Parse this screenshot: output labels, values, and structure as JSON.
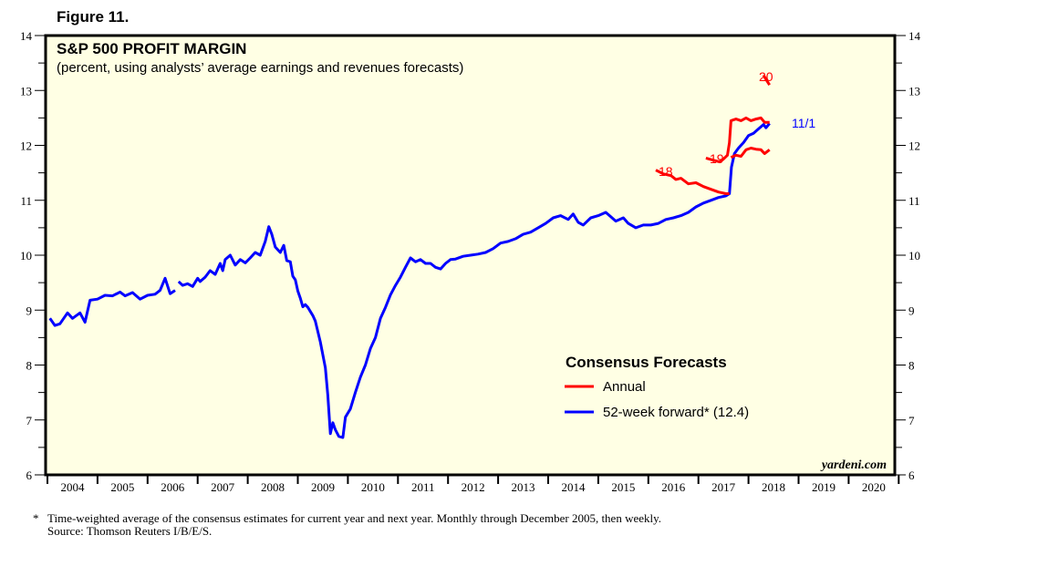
{
  "figure_label": "Figure 11.",
  "footnote": {
    "marker": "*",
    "line1": "Time-weighted average of the consensus estimates for current year and next year. Monthly through December 2005, then weekly.",
    "line2": "Source: Thomson Reuters I/B/E/S."
  },
  "chart_data": {
    "type": "line",
    "title": "S&P 500 PROFIT MARGIN",
    "subtitle": "(percent, using analysts’ average earnings and revenues forecasts)",
    "xlabel": "",
    "ylabel": "",
    "xlim": [
      2004,
      2021
    ],
    "ylim": [
      6,
      14
    ],
    "y_ticks": [
      6,
      7,
      8,
      9,
      10,
      11,
      12,
      13,
      14
    ],
    "x_tick_labels": [
      "2004",
      "2005",
      "2006",
      "2007",
      "2008",
      "2009",
      "2010",
      "2011",
      "2012",
      "2013",
      "2014",
      "2015",
      "2016",
      "2017",
      "2018",
      "2019",
      "2020"
    ],
    "grid": false,
    "brand": "yardeni.com",
    "colors": {
      "annual": "#ff0000",
      "forward": "#0000ff",
      "background": "#ffffe4"
    },
    "legend": {
      "title": "Consensus Forecasts",
      "placement": "lower-right",
      "entries": [
        {
          "name": "Annual",
          "color": "#ff0000"
        },
        {
          "name": "52-week forward* (12.4)",
          "color": "#0000ff"
        }
      ]
    },
    "annotations": [
      {
        "text": "18",
        "series": "Annual 2018",
        "color": "#ff0000"
      },
      {
        "text": "19",
        "series": "Annual 2019",
        "color": "#ff0000"
      },
      {
        "text": "20",
        "series": "Annual 2020",
        "color": "#ff0000"
      },
      {
        "text": "11/1",
        "series": "52-week forward latest",
        "color": "#0000ff"
      }
    ],
    "series": [
      {
        "name": "52-week forward",
        "color": "#0000ff",
        "segments": [
          [
            [
              2004.05,
              8.85
            ],
            [
              2004.15,
              8.72
            ],
            [
              2004.25,
              8.75
            ],
            [
              2004.4,
              8.95
            ],
            [
              2004.5,
              8.85
            ],
            [
              2004.65,
              8.95
            ],
            [
              2004.75,
              8.78
            ],
            [
              2004.85,
              9.18
            ],
            [
              2005.0,
              9.2
            ],
            [
              2005.15,
              9.27
            ],
            [
              2005.3,
              9.26
            ],
            [
              2005.45,
              9.33
            ],
            [
              2005.55,
              9.26
            ],
            [
              2005.7,
              9.32
            ],
            [
              2005.85,
              9.2
            ],
            [
              2006.0,
              9.27
            ],
            [
              2006.15,
              9.29
            ],
            [
              2006.25,
              9.36
            ],
            [
              2006.35,
              9.58
            ],
            [
              2006.45,
              9.3
            ],
            [
              2006.55,
              9.36
            ]
          ],
          [
            [
              2006.62,
              9.52
            ],
            [
              2006.7,
              9.45
            ],
            [
              2006.8,
              9.48
            ],
            [
              2006.9,
              9.43
            ],
            [
              2007.0,
              9.58
            ],
            [
              2007.05,
              9.52
            ],
            [
              2007.15,
              9.6
            ],
            [
              2007.25,
              9.72
            ],
            [
              2007.35,
              9.65
            ],
            [
              2007.45,
              9.85
            ],
            [
              2007.5,
              9.72
            ],
            [
              2007.55,
              9.92
            ],
            [
              2007.65,
              10.0
            ],
            [
              2007.75,
              9.82
            ],
            [
              2007.85,
              9.92
            ],
            [
              2007.95,
              9.86
            ],
            [
              2008.05,
              9.95
            ],
            [
              2008.15,
              10.05
            ],
            [
              2008.25,
              10.0
            ],
            [
              2008.35,
              10.25
            ],
            [
              2008.42,
              10.52
            ],
            [
              2008.48,
              10.38
            ],
            [
              2008.55,
              10.15
            ],
            [
              2008.65,
              10.05
            ],
            [
              2008.72,
              10.18
            ],
            [
              2008.78,
              9.9
            ],
            [
              2008.85,
              9.88
            ],
            [
              2008.9,
              9.62
            ],
            [
              2008.95,
              9.55
            ],
            [
              2009.0,
              9.35
            ],
            [
              2009.05,
              9.22
            ],
            [
              2009.1,
              9.06
            ],
            [
              2009.15,
              9.1
            ],
            [
              2009.2,
              9.05
            ],
            [
              2009.3,
              8.9
            ],
            [
              2009.35,
              8.8
            ],
            [
              2009.45,
              8.42
            ],
            [
              2009.55,
              7.95
            ],
            [
              2009.6,
              7.45
            ],
            [
              2009.65,
              6.75
            ],
            [
              2009.7,
              6.95
            ],
            [
              2009.75,
              6.82
            ],
            [
              2009.82,
              6.7
            ],
            [
              2009.9,
              6.68
            ],
            [
              2009.95,
              7.05
            ],
            [
              2010.05,
              7.2
            ],
            [
              2010.15,
              7.5
            ],
            [
              2010.25,
              7.78
            ],
            [
              2010.35,
              8.0
            ],
            [
              2010.45,
              8.3
            ],
            [
              2010.55,
              8.5
            ],
            [
              2010.65,
              8.85
            ],
            [
              2010.75,
              9.05
            ],
            [
              2010.85,
              9.28
            ],
            [
              2010.95,
              9.45
            ],
            [
              2011.05,
              9.6
            ],
            [
              2011.15,
              9.78
            ],
            [
              2011.25,
              9.95
            ],
            [
              2011.35,
              9.88
            ],
            [
              2011.45,
              9.92
            ],
            [
              2011.55,
              9.85
            ],
            [
              2011.65,
              9.85
            ],
            [
              2011.75,
              9.78
            ],
            [
              2011.85,
              9.75
            ],
            [
              2011.95,
              9.85
            ],
            [
              2012.05,
              9.92
            ],
            [
              2012.15,
              9.93
            ],
            [
              2012.3,
              9.98
            ],
            [
              2012.45,
              10.0
            ],
            [
              2012.6,
              10.02
            ],
            [
              2012.75,
              10.05
            ],
            [
              2012.9,
              10.12
            ],
            [
              2013.05,
              10.22
            ],
            [
              2013.2,
              10.25
            ],
            [
              2013.35,
              10.3
            ],
            [
              2013.5,
              10.38
            ],
            [
              2013.65,
              10.42
            ],
            [
              2013.8,
              10.5
            ],
            [
              2013.95,
              10.58
            ],
            [
              2014.1,
              10.68
            ],
            [
              2014.25,
              10.72
            ],
            [
              2014.4,
              10.65
            ],
            [
              2014.5,
              10.75
            ],
            [
              2014.6,
              10.6
            ],
            [
              2014.7,
              10.55
            ],
            [
              2014.85,
              10.68
            ],
            [
              2015.0,
              10.72
            ],
            [
              2015.15,
              10.78
            ],
            [
              2015.25,
              10.7
            ],
            [
              2015.35,
              10.62
            ],
            [
              2015.5,
              10.68
            ],
            [
              2015.6,
              10.58
            ],
            [
              2015.75,
              10.5
            ],
            [
              2015.9,
              10.55
            ],
            [
              2016.05,
              10.55
            ],
            [
              2016.2,
              10.58
            ],
            [
              2016.35,
              10.65
            ],
            [
              2016.5,
              10.68
            ],
            [
              2016.65,
              10.72
            ],
            [
              2016.8,
              10.78
            ],
            [
              2016.95,
              10.88
            ],
            [
              2017.1,
              10.95
            ],
            [
              2017.25,
              11.0
            ],
            [
              2017.4,
              11.05
            ],
            [
              2017.55,
              11.08
            ],
            [
              2017.62,
              11.12
            ],
            [
              2017.66,
              11.6
            ],
            [
              2017.72,
              11.85
            ],
            [
              2017.8,
              11.95
            ],
            [
              2017.9,
              12.05
            ],
            [
              2018.0,
              12.18
            ],
            [
              2018.1,
              12.22
            ],
            [
              2018.2,
              12.3
            ],
            [
              2018.3,
              12.38
            ],
            [
              2018.35,
              12.32
            ],
            [
              2018.42,
              12.4
            ]
          ]
        ]
      },
      {
        "name": "Annual 2018",
        "color": "#ff0000",
        "values": [
          [
            2016.15,
            11.55
          ],
          [
            2016.3,
            11.48
          ],
          [
            2016.45,
            11.45
          ],
          [
            2016.55,
            11.38
          ],
          [
            2016.65,
            11.4
          ],
          [
            2016.8,
            11.3
          ],
          [
            2016.95,
            11.32
          ],
          [
            2017.1,
            11.25
          ],
          [
            2017.25,
            11.2
          ],
          [
            2017.4,
            11.15
          ],
          [
            2017.55,
            11.12
          ],
          [
            2017.62,
            11.12
          ]
        ]
      },
      {
        "name": "Annual 2019",
        "color": "#ff0000",
        "values": [
          [
            2017.15,
            11.77
          ],
          [
            2017.3,
            11.73
          ],
          [
            2017.42,
            11.7
          ],
          [
            2017.5,
            11.75
          ],
          [
            2017.58,
            11.82
          ],
          [
            2017.62,
            12.05
          ],
          [
            2017.65,
            12.45
          ],
          [
            2017.75,
            12.48
          ],
          [
            2017.85,
            12.45
          ],
          [
            2017.95,
            12.5
          ],
          [
            2018.05,
            12.45
          ],
          [
            2018.15,
            12.48
          ],
          [
            2018.25,
            12.5
          ],
          [
            2018.32,
            12.42
          ],
          [
            2018.42,
            12.42
          ]
        ]
      },
      {
        "name": "Annual 2019 (second)",
        "color": "#ff0000",
        "values": [
          [
            2017.65,
            11.78
          ],
          [
            2017.75,
            11.82
          ],
          [
            2017.85,
            11.8
          ],
          [
            2017.95,
            11.92
          ],
          [
            2018.05,
            11.95
          ],
          [
            2018.15,
            11.93
          ],
          [
            2018.25,
            11.92
          ],
          [
            2018.32,
            11.85
          ],
          [
            2018.42,
            11.92
          ]
        ]
      },
      {
        "name": "Annual 2020",
        "color": "#ff0000",
        "values": [
          [
            2018.3,
            13.28
          ],
          [
            2018.35,
            13.2
          ],
          [
            2018.42,
            13.1
          ]
        ]
      }
    ]
  }
}
